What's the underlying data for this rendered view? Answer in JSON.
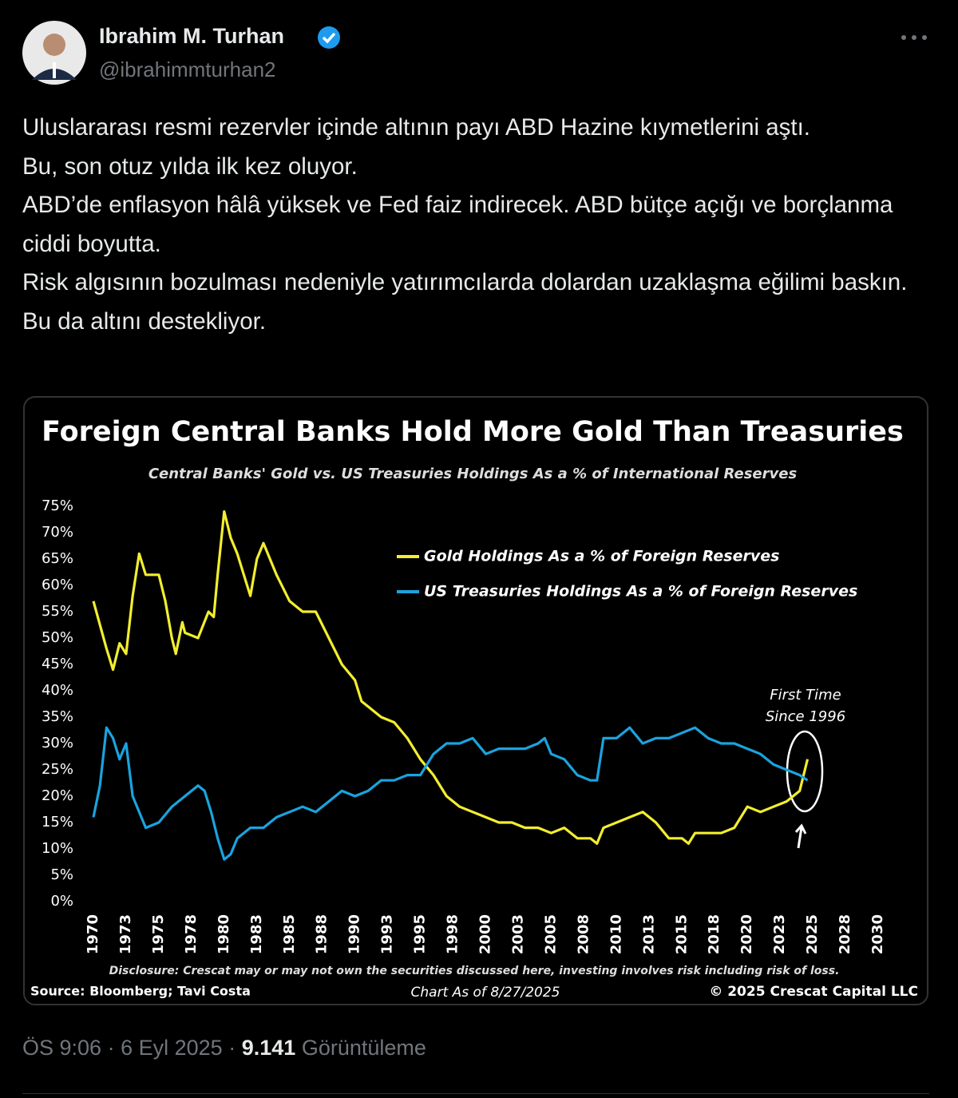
{
  "tweet": {
    "name": "Ibrahim M. Turhan",
    "handle": "@ibrahimmturhan2",
    "paragraphs": [
      "Uluslararası resmi rezervler içinde altının payı ABD Hazine kıymetlerini aştı.",
      "Bu, son otuz yılda ilk kez oluyor.",
      "ABD’de enflasyon hâlâ yüksek ve Fed faiz indirecek. ABD bütçe açığı ve borçlanma ciddi boyutta.",
      "Risk algısının bozulması nedeniyle yatırımcılarda dolardan uzaklaşma eğilimi baskın. Bu da altını destekliyor."
    ],
    "time": "ÖS 9:06",
    "separator": "·",
    "date": "6 Eyl 2025",
    "views": "9.141",
    "views_label": "Görüntüleme"
  },
  "chart_data": {
    "type": "line",
    "title": "Foreign Central Banks Hold More Gold Than Treasuries",
    "subtitle": "Central Banks' Gold vs. US Treasuries Holdings As a % of International Reserves",
    "annotation": [
      "First Time",
      "Since 1996"
    ],
    "disclosure": "Disclosure: Crescat may or may not own the securities discussed here, investing involves risk including risk of loss.",
    "source": "Source: Bloomberg; Tavi Costa",
    "chart_date": "Chart As of 8/27/2025",
    "copyright": "© 2025 Crescat Capital LLC",
    "xlim": [
      1970,
      2030
    ],
    "ylim": [
      0,
      75
    ],
    "xticks": [
      1970,
      {
        "value": 1972.5,
        "label": "1973"
      },
      1975,
      {
        "value": 1977.5,
        "label": "1978"
      },
      1980,
      {
        "value": 1982.5,
        "label": "1983"
      },
      1985,
      {
        "value": 1987.5,
        "label": "1988"
      },
      1990,
      {
        "value": 1992.5,
        "label": "1993"
      },
      1995,
      {
        "value": 1997.5,
        "label": "1998"
      },
      2000,
      {
        "value": 2002.5,
        "label": "2003"
      },
      2005,
      {
        "value": 2007.5,
        "label": "2008"
      },
      2010,
      {
        "value": 2012.5,
        "label": "2013"
      },
      2015,
      {
        "value": 2017.5,
        "label": "2018"
      },
      2020,
      {
        "value": 2022.5,
        "label": "2023"
      },
      2025,
      {
        "value": 2027.5,
        "label": "2028"
      },
      2030
    ],
    "yticks": [
      {
        "value": 0,
        "label": "0%"
      },
      {
        "value": 5,
        "label": "5%"
      },
      {
        "value": 10,
        "label": "10%"
      },
      {
        "value": 15,
        "label": "15%"
      },
      {
        "value": 20,
        "label": "20%"
      },
      {
        "value": 25,
        "label": "25%"
      },
      {
        "value": 30,
        "label": "30%"
      },
      {
        "value": 35,
        "label": "35%"
      },
      {
        "value": 40,
        "label": "40%"
      },
      {
        "value": 45,
        "label": "45%"
      },
      {
        "value": 50,
        "label": "50%"
      },
      {
        "value": 55,
        "label": "55%"
      },
      {
        "value": 60,
        "label": "60%"
      },
      {
        "value": 65,
        "label": "65%"
      },
      {
        "value": 70,
        "label": "70%"
      },
      {
        "value": 75,
        "label": "75%"
      }
    ],
    "series": [
      {
        "name": "Gold Holdings As a % of Foreign Reserves",
        "color": "#f2ee2e",
        "x": [
          1970,
          1971,
          1971.5,
          1972,
          1972.5,
          1973,
          1973.5,
          1974,
          1975,
          1975.5,
          1976,
          1976.3,
          1976.8,
          1977,
          1978,
          1978.8,
          1979.2,
          1979.5,
          1980,
          1980.5,
          1981,
          1981.5,
          1982,
          1982.5,
          1983,
          1983.5,
          1984,
          1985,
          1986,
          1987,
          1988,
          1989,
          1990,
          1990.5,
          1991,
          1992,
          1993,
          1994,
          1995,
          1996,
          1997,
          1998,
          1999,
          2000,
          2001,
          2002,
          2003,
          2004,
          2005,
          2006,
          2007,
          2008,
          2008.5,
          2009,
          2010,
          2011,
          2012,
          2013,
          2014,
          2015,
          2015.5,
          2016,
          2017,
          2018,
          2019,
          2020,
          2021,
          2022,
          2023,
          2024,
          2024.6
        ],
        "values": [
          57,
          48,
          44,
          49,
          47,
          58,
          66,
          62,
          62,
          57,
          50,
          47,
          53,
          51,
          50,
          55,
          54,
          62,
          74,
          69,
          66,
          62,
          58,
          65,
          68,
          65,
          62,
          57,
          55,
          55,
          50,
          45,
          42,
          38,
          37,
          35,
          34,
          31,
          27,
          24,
          20,
          18,
          17,
          16,
          15,
          15,
          14,
          14,
          13,
          14,
          12,
          12,
          11,
          14,
          15,
          16,
          17,
          15,
          12,
          12,
          11,
          13,
          13,
          13,
          14,
          18,
          17,
          18,
          19,
          21,
          27
        ]
      },
      {
        "name": "US Treasuries Holdings As a % of Foreign Reserves",
        "color": "#1aa3de",
        "x": [
          1970,
          1970.5,
          1971,
          1971.5,
          1972,
          1972.5,
          1973,
          1973.5,
          1974,
          1975,
          1976,
          1977,
          1978,
          1978.5,
          1979,
          1979.5,
          1980,
          1980.5,
          1981,
          1982,
          1983,
          1984,
          1985,
          1986,
          1987,
          1988,
          1989,
          1990,
          1991,
          1992,
          1993,
          1994,
          1995,
          1996,
          1997,
          1998,
          1999,
          2000,
          2001,
          2002,
          2003,
          2004,
          2004.5,
          2005,
          2006,
          2007,
          2008,
          2008.5,
          2009,
          2010,
          2011,
          2012,
          2013,
          2014,
          2015,
          2016,
          2017,
          2018,
          2019,
          2020,
          2021,
          2022,
          2023,
          2024,
          2024.6
        ],
        "values": [
          16,
          22,
          33,
          31,
          27,
          30,
          20,
          17,
          14,
          15,
          18,
          20,
          22,
          21,
          17,
          12,
          8,
          9,
          12,
          14,
          14,
          16,
          17,
          18,
          17,
          19,
          21,
          20,
          21,
          23,
          23,
          24,
          24,
          28,
          30,
          30,
          31,
          28,
          29,
          29,
          29,
          30,
          31,
          28,
          27,
          24,
          23,
          23,
          31,
          31,
          33,
          30,
          31,
          31,
          32,
          33,
          31,
          30,
          30,
          29,
          28,
          26,
          25,
          24,
          23
        ]
      }
    ]
  }
}
